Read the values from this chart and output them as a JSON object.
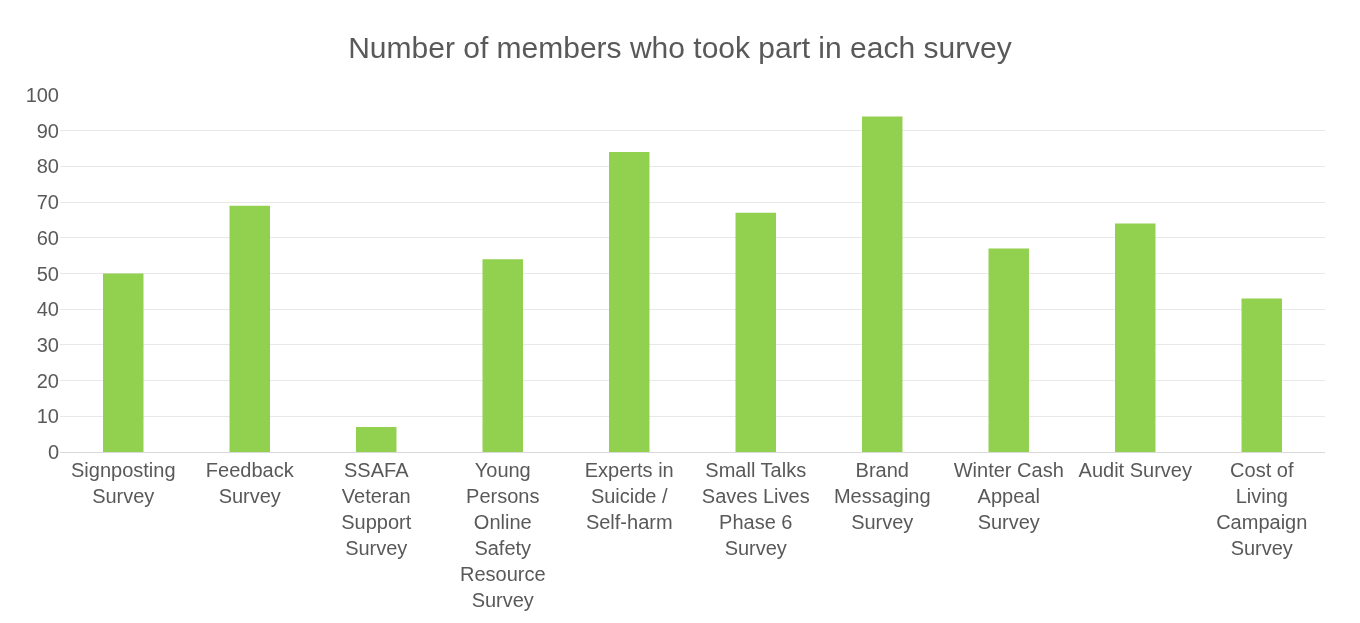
{
  "chart_data": {
    "type": "bar",
    "title": "Number of members who took part in each survey",
    "categories": [
      "Signposting Survey",
      "Feedback Survey",
      "SSAFA Veteran Support Survey",
      "Young Persons Online Safety Resource Survey",
      "Experts in Suicide / Self-harm",
      "Small Talks Saves Lives Phase 6 Survey",
      "Brand Messaging Survey",
      "Winter Cash Appeal Survey",
      "Audit Survey",
      "Cost of Living Campaign Survey"
    ],
    "values": [
      50,
      69,
      7,
      54,
      84,
      67,
      94,
      57,
      64,
      43
    ],
    "color": "#92d050",
    "ylim": [
      0,
      100
    ],
    "yticks": [
      0,
      10,
      20,
      30,
      40,
      50,
      60,
      70,
      80,
      90,
      100
    ],
    "grid": "y"
  }
}
